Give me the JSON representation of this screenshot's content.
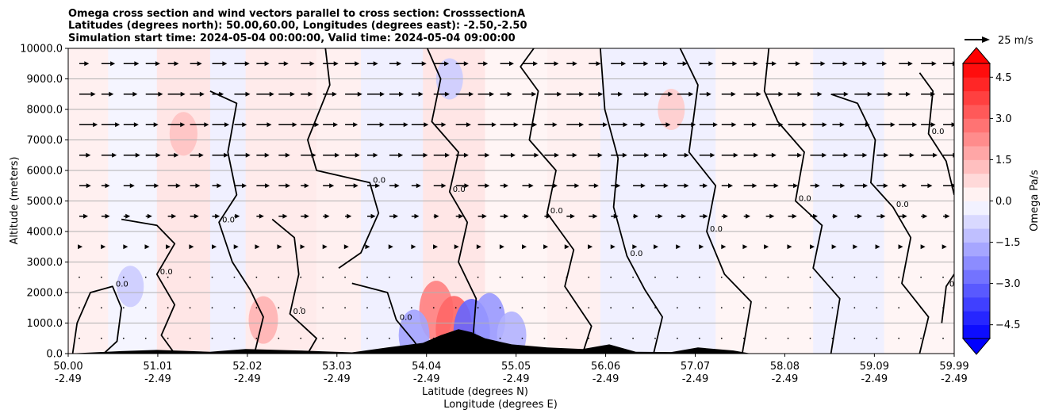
{
  "chart_data": {
    "type": "heatmap",
    "title_lines": [
      "Omega cross section and wind vectors parallel to cross section: CrosssectionA",
      "Latitudes (degrees north): 50.00,60.00, Longitudes (degrees east): -2.50,-2.50",
      "Simulation start time: 2024-05-04 00:00:00, Valid time: 2024-05-04 09:00:00"
    ],
    "xlabel_lines": [
      "Latitude (degrees N)",
      "Longitude (degrees E)"
    ],
    "ylabel": "Altitude (meters)",
    "ylim": [
      0,
      10000
    ],
    "xlim": [
      50.0,
      59.99
    ],
    "x_tick_values": [
      50.0,
      51.01,
      52.02,
      53.03,
      54.04,
      55.05,
      56.06,
      57.07,
      58.08,
      59.09,
      59.99
    ],
    "x_tick_labels": [
      "50.00",
      "51.01",
      "52.02",
      "53.03",
      "54.04",
      "55.05",
      "56.06",
      "57.07",
      "58.08",
      "59.09",
      "59.99"
    ],
    "x_tick_sublabels": [
      "-2.49",
      "-2.49",
      "-2.49",
      "-2.49",
      "-2.49",
      "-2.49",
      "-2.49",
      "-2.49",
      "-2.49",
      "-2.49",
      "-2.49"
    ],
    "y_tick_values": [
      0,
      1000,
      2000,
      3000,
      4000,
      5000,
      6000,
      7000,
      8000,
      9000,
      10000
    ],
    "y_tick_labels": [
      "0.0",
      "1000.0",
      "2000.0",
      "3000.0",
      "4000.0",
      "5000.0",
      "6000.0",
      "7000.0",
      "8000.0",
      "9000.0",
      "10000.0"
    ],
    "grid": "horizontal",
    "colorbar": {
      "label": "Omega Pa/s",
      "range": [
        -5.0,
        5.0
      ],
      "extend": "both",
      "tick_values": [
        -4.5,
        -3.0,
        -1.5,
        0.0,
        1.5,
        3.0,
        4.5
      ],
      "tick_labels": [
        "−4.5",
        "−3.0",
        "−1.5",
        "0.0",
        "1.5",
        "3.0",
        "4.5"
      ],
      "cmap": "bwr",
      "negative_color": "#0000ff",
      "positive_color": "#ff0000"
    },
    "quiver_key": {
      "label": "25 m/s",
      "magnitude": 25
    },
    "contour_level_label": "0.0",
    "omega_bands": [
      {
        "x0": 50.0,
        "x1": 50.45,
        "value": 0.3
      },
      {
        "x0": 50.45,
        "x1": 51.0,
        "value": -0.2
      },
      {
        "x0": 51.0,
        "x1": 51.6,
        "value": 0.5
      },
      {
        "x0": 51.6,
        "x1": 52.0,
        "value": -0.3
      },
      {
        "x0": 52.0,
        "x1": 52.8,
        "value": 0.4
      },
      {
        "x0": 52.8,
        "x1": 53.3,
        "value": 0.3
      },
      {
        "x0": 53.3,
        "x1": 54.0,
        "value": -0.3
      },
      {
        "x0": 54.0,
        "x1": 54.7,
        "value": 0.5
      },
      {
        "x0": 54.7,
        "x1": 55.4,
        "value": 0.2
      },
      {
        "x0": 55.4,
        "x1": 56.0,
        "value": 0.3
      },
      {
        "x0": 56.0,
        "x1": 57.3,
        "value": -0.3
      },
      {
        "x0": 57.3,
        "x1": 58.4,
        "value": 0.2
      },
      {
        "x0": 58.4,
        "x1": 59.2,
        "value": -0.3
      },
      {
        "x0": 59.2,
        "x1": 59.99,
        "value": 0.2
      }
    ],
    "strong_cells": [
      {
        "x": 51.3,
        "y": 7200,
        "value": 1.2
      },
      {
        "x": 50.7,
        "y": 2200,
        "value": -1.0
      },
      {
        "x": 52.2,
        "y": 1100,
        "value": 1.5
      },
      {
        "x": 54.15,
        "y": 1400,
        "value": 2.5
      },
      {
        "x": 54.35,
        "y": 800,
        "value": 3.0
      },
      {
        "x": 54.55,
        "y": 700,
        "value": -3.0
      },
      {
        "x": 54.75,
        "y": 1100,
        "value": -2.0
      },
      {
        "x": 55.0,
        "y": 600,
        "value": -1.5
      },
      {
        "x": 53.9,
        "y": 600,
        "value": -1.8
      },
      {
        "x": 56.8,
        "y": 8000,
        "value": 1.0
      },
      {
        "x": 54.3,
        "y": 9000,
        "value": -1.0
      }
    ],
    "terrain": [
      {
        "x": 50.0,
        "h": 0
      },
      {
        "x": 50.6,
        "h": 80
      },
      {
        "x": 51.0,
        "h": 120
      },
      {
        "x": 51.6,
        "h": 60
      },
      {
        "x": 52.0,
        "h": 150
      },
      {
        "x": 52.6,
        "h": 100
      },
      {
        "x": 53.2,
        "h": 40
      },
      {
        "x": 53.6,
        "h": 200
      },
      {
        "x": 54.0,
        "h": 350
      },
      {
        "x": 54.2,
        "h": 600
      },
      {
        "x": 54.4,
        "h": 800
      },
      {
        "x": 54.55,
        "h": 700
      },
      {
        "x": 54.7,
        "h": 500
      },
      {
        "x": 55.0,
        "h": 300
      },
      {
        "x": 55.4,
        "h": 200
      },
      {
        "x": 55.8,
        "h": 150
      },
      {
        "x": 56.1,
        "h": 300
      },
      {
        "x": 56.4,
        "h": 60
      },
      {
        "x": 56.8,
        "h": 50
      },
      {
        "x": 57.1,
        "h": 200
      },
      {
        "x": 57.5,
        "h": 100
      },
      {
        "x": 57.7,
        "h": 0
      },
      {
        "x": 59.99,
        "h": 0
      }
    ],
    "wind_level_speeds": [
      {
        "z": 9500,
        "speed": 14
      },
      {
        "z": 8500,
        "speed": 16
      },
      {
        "z": 7500,
        "speed": 17
      },
      {
        "z": 6500,
        "speed": 15
      },
      {
        "z": 5500,
        "speed": 12
      },
      {
        "z": 4500,
        "speed": 8
      },
      {
        "z": 3500,
        "speed": 4
      },
      {
        "z": 2500,
        "speed": 2
      },
      {
        "z": 1500,
        "speed": 2
      },
      {
        "z": 500,
        "speed": 1
      }
    ],
    "zero_contours": [
      [
        [
          50.05,
          0
        ],
        [
          50.1,
          1000
        ],
        [
          50.25,
          2000
        ],
        [
          50.5,
          2200
        ],
        [
          50.6,
          1500
        ],
        [
          50.55,
          400
        ],
        [
          50.4,
          0
        ]
      ],
      [
        [
          50.6,
          4400
        ],
        [
          51.0,
          4200
        ],
        [
          51.2,
          3600
        ],
        [
          51.0,
          2600
        ],
        [
          51.2,
          1600
        ],
        [
          51.05,
          600
        ],
        [
          51.2,
          0
        ]
      ],
      [
        [
          51.6,
          8600
        ],
        [
          51.9,
          8200
        ],
        [
          51.8,
          6600
        ],
        [
          51.9,
          5200
        ],
        [
          51.7,
          4300
        ],
        [
          51.85,
          3000
        ],
        [
          52.05,
          2100
        ],
        [
          52.2,
          1200
        ],
        [
          52.1,
          0
        ]
      ],
      [
        [
          52.3,
          4400
        ],
        [
          52.55,
          3800
        ],
        [
          52.6,
          2600
        ],
        [
          52.5,
          1300
        ],
        [
          52.8,
          500
        ],
        [
          52.7,
          0
        ]
      ],
      [
        [
          52.9,
          10000
        ],
        [
          52.95,
          8800
        ],
        [
          52.7,
          7000
        ],
        [
          52.8,
          6000
        ],
        [
          53.4,
          5600
        ],
        [
          53.5,
          4600
        ],
        [
          53.3,
          3300
        ],
        [
          53.05,
          2800
        ]
      ],
      [
        [
          53.2,
          2300
        ],
        [
          53.6,
          2000
        ],
        [
          53.7,
          1100
        ],
        [
          53.9,
          400
        ],
        [
          54.0,
          0
        ]
      ],
      [
        [
          54.05,
          10000
        ],
        [
          54.2,
          9000
        ],
        [
          54.1,
          7600
        ],
        [
          54.4,
          6600
        ],
        [
          54.3,
          5300
        ],
        [
          54.5,
          4300
        ],
        [
          54.4,
          3000
        ],
        [
          54.6,
          1800
        ],
        [
          54.55,
          0
        ]
      ],
      [
        [
          55.25,
          10000
        ],
        [
          55.1,
          9400
        ],
        [
          55.3,
          8600
        ],
        [
          55.2,
          7000
        ],
        [
          55.5,
          6000
        ],
        [
          55.4,
          4600
        ],
        [
          55.7,
          3400
        ],
        [
          55.6,
          2200
        ],
        [
          55.9,
          900
        ],
        [
          55.8,
          0
        ]
      ],
      [
        [
          56.0,
          10000
        ],
        [
          56.05,
          8000
        ],
        [
          56.2,
          6400
        ],
        [
          56.15,
          4800
        ],
        [
          56.3,
          3200
        ],
        [
          56.5,
          2100
        ],
        [
          56.7,
          1200
        ],
        [
          56.6,
          0
        ]
      ],
      [
        [
          56.9,
          10000
        ],
        [
          57.1,
          8800
        ],
        [
          57.0,
          6600
        ],
        [
          57.3,
          5500
        ],
        [
          57.2,
          4000
        ],
        [
          57.4,
          2600
        ],
        [
          57.7,
          1700
        ],
        [
          57.6,
          0
        ]
      ],
      [
        [
          57.9,
          10000
        ],
        [
          57.85,
          8600
        ],
        [
          58.0,
          7600
        ],
        [
          58.3,
          6600
        ],
        [
          58.2,
          5000
        ],
        [
          58.5,
          4200
        ],
        [
          58.4,
          2800
        ],
        [
          58.7,
          1800
        ],
        [
          58.6,
          0
        ]
      ],
      [
        [
          58.6,
          8500
        ],
        [
          58.9,
          8200
        ],
        [
          59.1,
          7000
        ],
        [
          59.05,
          5600
        ],
        [
          59.3,
          4800
        ],
        [
          59.5,
          3800
        ],
        [
          59.4,
          2300
        ],
        [
          59.7,
          1200
        ],
        [
          59.6,
          0
        ]
      ],
      [
        [
          59.6,
          9200
        ],
        [
          59.75,
          8600
        ],
        [
          59.7,
          7200
        ],
        [
          59.9,
          6300
        ],
        [
          59.99,
          5200
        ]
      ],
      [
        [
          59.85,
          1000
        ],
        [
          59.9,
          2200
        ],
        [
          59.99,
          2600
        ]
      ]
    ]
  }
}
